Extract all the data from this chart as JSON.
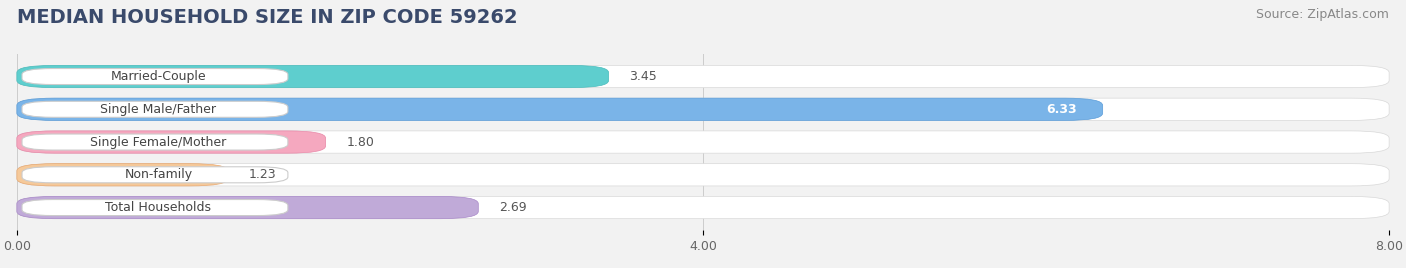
{
  "title": "MEDIAN HOUSEHOLD SIZE IN ZIP CODE 59262",
  "source": "Source: ZipAtlas.com",
  "categories": [
    "Married-Couple",
    "Single Male/Father",
    "Single Female/Mother",
    "Non-family",
    "Total Households"
  ],
  "values": [
    3.45,
    6.33,
    1.8,
    1.23,
    2.69
  ],
  "value_labels": [
    "3.45",
    "6.33",
    "1.80",
    "1.23",
    "2.69"
  ],
  "bar_colors": [
    "#5ecece",
    "#7ab4e8",
    "#f5a8bf",
    "#f5c99a",
    "#c0aad8"
  ],
  "bar_edge_colors": [
    "#4bbcbc",
    "#5a9cd8",
    "#e888a8",
    "#e8a870",
    "#a888c8"
  ],
  "xlim": [
    0,
    8.0
  ],
  "xticks": [
    0.0,
    4.0,
    8.0
  ],
  "xtick_labels": [
    "0.00",
    "4.00",
    "8.00"
  ],
  "background_color": "#f2f2f2",
  "bar_background_color": "#ffffff",
  "chart_bg_color": "#f2f2f2",
  "title_color": "#3a4a6b",
  "source_color": "#888888",
  "label_color": "#444444",
  "value_color_inside": "#ffffff",
  "value_color_outside": "#555555",
  "title_fontsize": 14,
  "source_fontsize": 9,
  "label_fontsize": 9,
  "value_fontsize": 9,
  "value_inside_threshold": 5.5
}
